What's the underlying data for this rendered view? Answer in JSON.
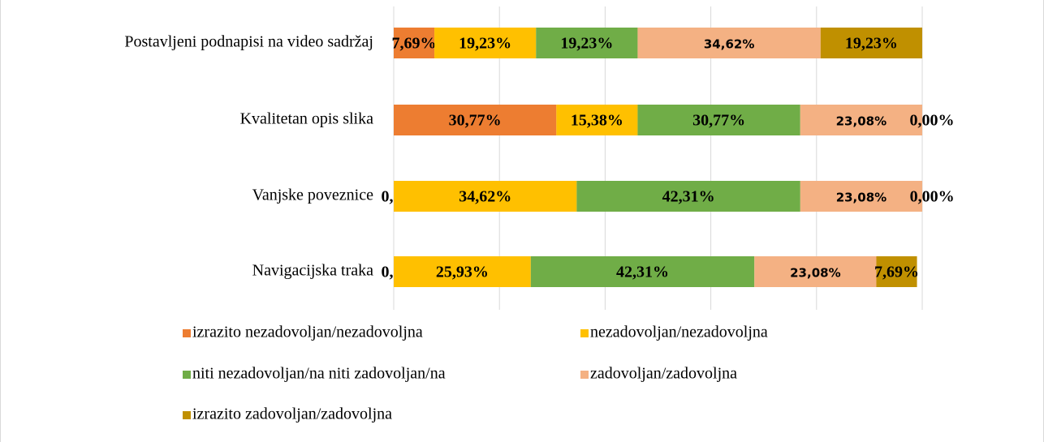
{
  "chart_data": {
    "type": "stacked-bar-horizontal",
    "categories": [
      "Postavljeni podnapisi na video sadržaj",
      "Kvalitetan opis slika",
      "Vanjske poveznice",
      "Navigacijska traka"
    ],
    "series": [
      {
        "name": "izrazito nezadovoljan/nezadovoljna",
        "color": "#ed7d31",
        "values": [
          7.69,
          30.77,
          0,
          0
        ],
        "value_labels": [
          "7,69%",
          "30,77%",
          "0,00%",
          "0,00%"
        ]
      },
      {
        "name": "nezadovoljan/nezadovoljna",
        "color": "#ffc000",
        "values": [
          19.23,
          15.38,
          34.62,
          25.93
        ],
        "value_labels": [
          "19,23%",
          "15,38%",
          "34,62%",
          "25,93%"
        ]
      },
      {
        "name": "niti nezadovoljan/na niti zadovoljan/na",
        "color": "#70ad47",
        "values": [
          19.23,
          30.77,
          42.31,
          42.31
        ],
        "value_labels": [
          "19,23%",
          "30,77%",
          "42,31%",
          "42,31%"
        ]
      },
      {
        "name": "zadovoljan/zadovoljna",
        "color": "#f4b183",
        "values": [
          34.62,
          23.08,
          23.08,
          23.08
        ],
        "value_labels": [
          "34,62%",
          "23,08%",
          "23,08%",
          "23,08%"
        ]
      },
      {
        "name": "izrazito zadovoljan/zadovoljna",
        "color": "#c09000",
        "values": [
          19.23,
          0,
          0,
          7.69
        ],
        "value_labels": [
          "19,23%",
          "0,00%",
          "0,00%",
          "7,69%"
        ]
      }
    ],
    "xlim": [
      0,
      100
    ],
    "xticks": [
      0,
      20,
      40,
      60,
      80,
      100
    ],
    "grid": true
  }
}
